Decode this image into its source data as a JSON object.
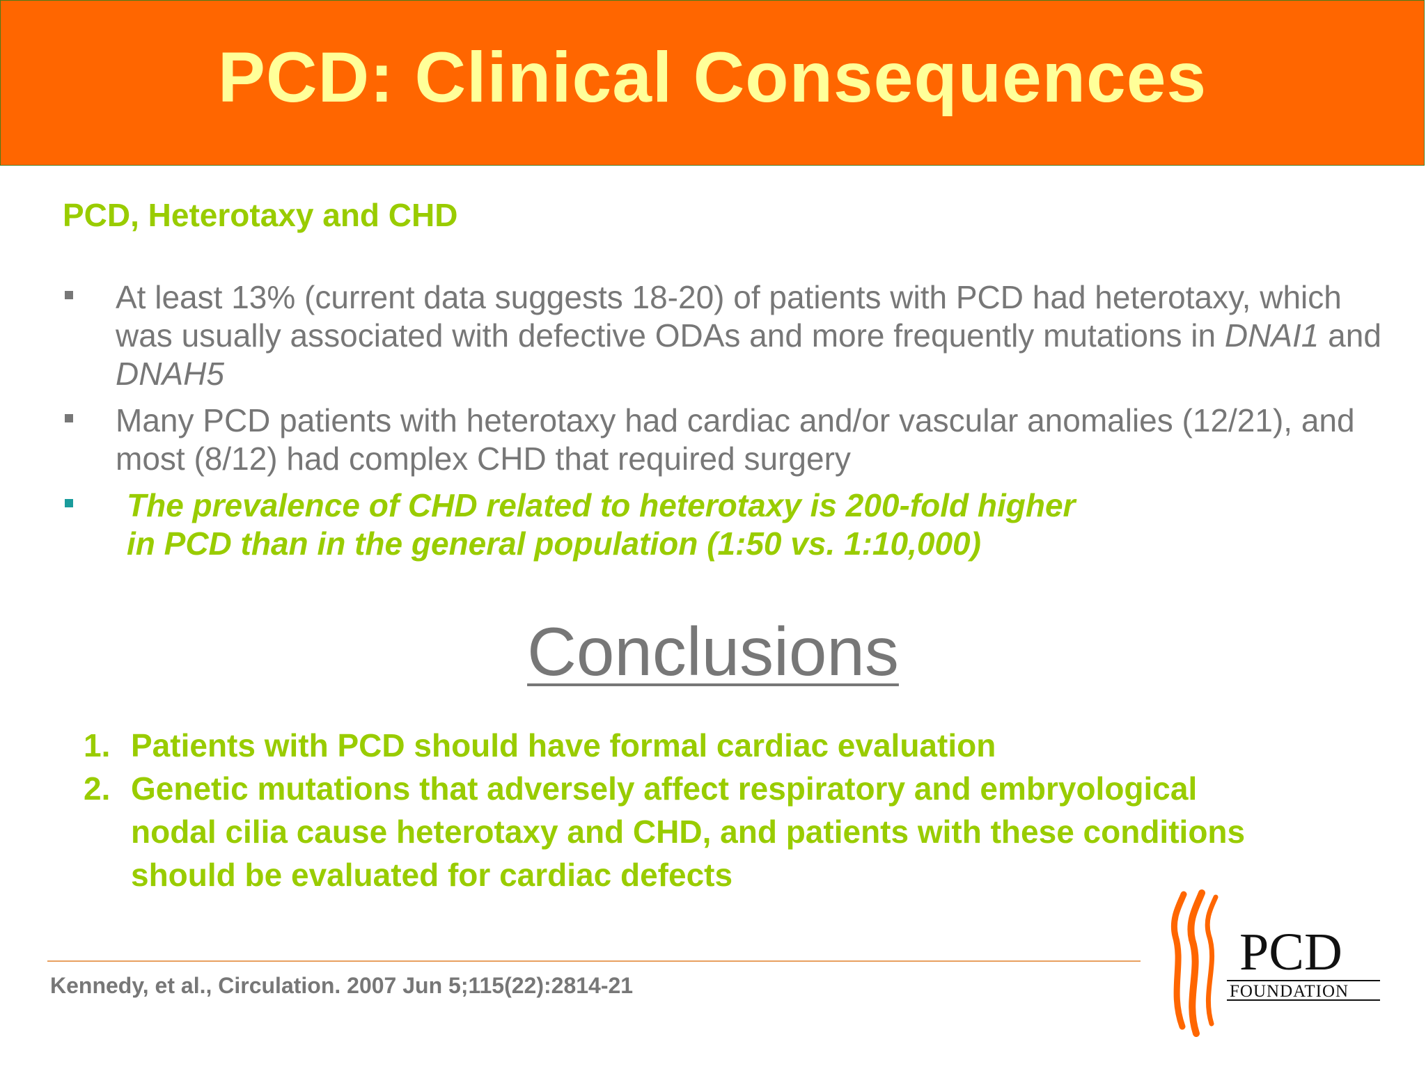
{
  "title": "PCD: Clinical Consequences",
  "subtitle": "PCD, Heterotaxy and CHD",
  "bullets": [
    {
      "text_a": "At least 13% (current data suggests 18-20) of patients with PCD had heterotaxy, which was usually associated with defective ODAs and more frequently mutations in ",
      "gene1": "DNAI1",
      "text_b": " and ",
      "gene2": "DNAH5"
    },
    {
      "text": "Many PCD patients with heterotaxy had cardiac and/or vascular anomalies (12/21), and most (8/12) had complex CHD that required surgery"
    },
    {
      "line1": "The prevalence of CHD related to heterotaxy is 200-fold higher",
      "line2": "in PCD than in the general population (1:50 vs. 1:10,000)"
    }
  ],
  "conclusions": {
    "heading": "Conclusions",
    "items": [
      {
        "num": "1.",
        "text": "Patients with PCD should have formal cardiac evaluation"
      },
      {
        "num": "2.",
        "text": "Genetic mutations that adversely affect respiratory and embryological nodal cilia cause heterotaxy and CHD, and patients with these conditions should be evaluated for cardiac defects"
      }
    ]
  },
  "citation": "Kennedy, et al., Circulation. 2007 Jun 5;115(22):2814-21",
  "logo": {
    "name": "PCD",
    "sub": "FOUNDATION",
    "icon": "cilia-icon",
    "color": "#ff6600"
  },
  "colors": {
    "header_bg": "#ff6600",
    "title": "#ffff99",
    "accent_green": "#99cc00",
    "body_gray": "#777777",
    "highlight_bullet": "#1a9c9c"
  }
}
